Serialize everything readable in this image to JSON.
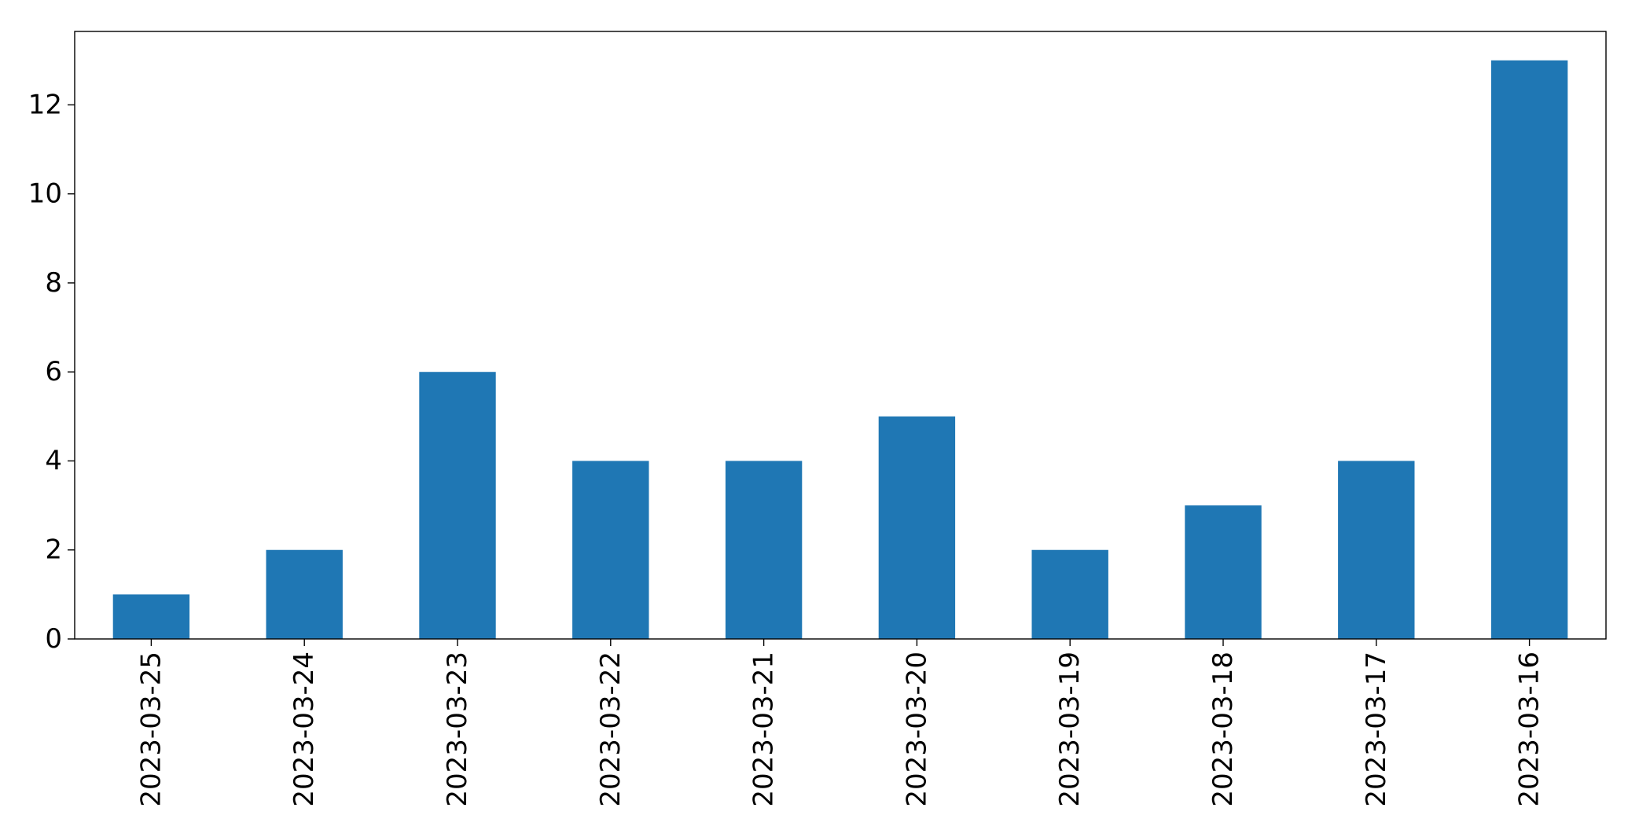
{
  "chart_data": {
    "type": "bar",
    "title": "",
    "xlabel": "",
    "ylabel": "",
    "categories": [
      "2023-03-25",
      "2023-03-24",
      "2023-03-23",
      "2023-03-22",
      "2023-03-21",
      "2023-03-20",
      "2023-03-19",
      "2023-03-18",
      "2023-03-17",
      "2023-03-16"
    ],
    "values": [
      1,
      2,
      6,
      4,
      4,
      5,
      2,
      3,
      4,
      13
    ],
    "ylim": [
      0,
      13.65
    ],
    "yticks": [
      0,
      2,
      4,
      6,
      8,
      10,
      12
    ],
    "grid": false,
    "legend": "none",
    "bar_color": "#1f77b4"
  }
}
